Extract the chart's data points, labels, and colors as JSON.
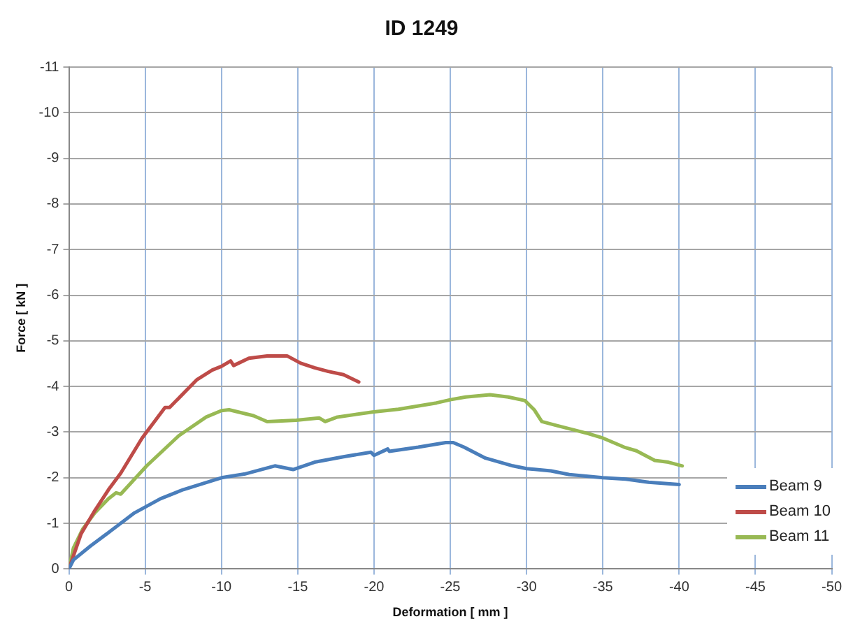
{
  "chart_data": {
    "type": "line",
    "title": "ID 1249",
    "xlabel": "Deformation [ mm ]",
    "ylabel": "Force [ kN ]",
    "xlim": [
      0,
      -50
    ],
    "xticks": [
      0,
      -5,
      -10,
      -15,
      -20,
      -25,
      -30,
      -35,
      -40,
      -45,
      -50
    ],
    "ylim": [
      0,
      -11
    ],
    "yticks": [
      0,
      -1,
      -2,
      -3,
      -4,
      -5,
      -6,
      -7,
      -8,
      -9,
      -10,
      -11
    ],
    "grid": true,
    "legend": "bottom right",
    "marker": "none",
    "line_style": "solid",
    "series": [
      {
        "name": "Beam 9",
        "color": "#4a7ebb",
        "x": [
          0,
          -0.3,
          -1.4,
          -2.6,
          -4.3,
          -6,
          -7.5,
          -10,
          -11.5,
          -13.5,
          -14.7,
          -16.1,
          -18,
          -19.8,
          -20,
          -20.9,
          -21,
          -22.9,
          -24.7,
          -25.2,
          -25.9,
          -27.3,
          -29.1,
          -30,
          -31.6,
          -32.8,
          -35,
          -36.5,
          -38,
          -40
        ],
        "values": [
          0,
          -0.2,
          -0.5,
          -0.8,
          -1.23,
          -1.54,
          -1.74,
          -2.0,
          -2.08,
          -2.26,
          -2.18,
          -2.34,
          -2.46,
          -2.56,
          -2.49,
          -2.63,
          -2.58,
          -2.67,
          -2.77,
          -2.77,
          -2.67,
          -2.43,
          -2.26,
          -2.2,
          -2.15,
          -2.07,
          -2.0,
          -1.97,
          -1.9,
          -1.85
        ]
      },
      {
        "name": "Beam 10",
        "color": "#be4b48",
        "x": [
          0,
          -0.8,
          -1.7,
          -2.6,
          -3.4,
          -4.8,
          -6.3,
          -6.6,
          -8.4,
          -9.4,
          -10,
          -10.6,
          -10.8,
          -11.8,
          -13,
          -14.3,
          -15.2,
          -16.1,
          -17,
          -18,
          -19
        ],
        "values": [
          0,
          -0.77,
          -1.28,
          -1.74,
          -2.1,
          -2.87,
          -3.54,
          -3.54,
          -4.15,
          -4.36,
          -4.44,
          -4.56,
          -4.46,
          -4.62,
          -4.67,
          -4.67,
          -4.51,
          -4.41,
          -4.33,
          -4.26,
          -4.1
        ]
      },
      {
        "name": "Beam 11",
        "color": "#98b954",
        "x": [
          0,
          -0.3,
          -0.9,
          -1.7,
          -2.6,
          -3.1,
          -3.4,
          -5.1,
          -7.2,
          -9,
          -10,
          -10.5,
          -12.1,
          -13,
          -14.9,
          -16.4,
          -16.8,
          -17.6,
          -19.9,
          -21.6,
          -24.1,
          -25,
          -26,
          -27.6,
          -28.8,
          -29.9,
          -30.5,
          -31,
          -31.9,
          -34,
          -35,
          -36.4,
          -37.2,
          -38.4,
          -39.3,
          -40.2
        ],
        "values": [
          0,
          -0.46,
          -0.87,
          -1.23,
          -1.54,
          -1.67,
          -1.64,
          -2.26,
          -2.92,
          -3.33,
          -3.47,
          -3.49,
          -3.36,
          -3.23,
          -3.26,
          -3.31,
          -3.23,
          -3.33,
          -3.44,
          -3.5,
          -3.64,
          -3.71,
          -3.77,
          -3.82,
          -3.77,
          -3.69,
          -3.49,
          -3.23,
          -3.15,
          -2.97,
          -2.87,
          -2.67,
          -2.59,
          -2.38,
          -2.34,
          -2.26
        ]
      }
    ]
  }
}
